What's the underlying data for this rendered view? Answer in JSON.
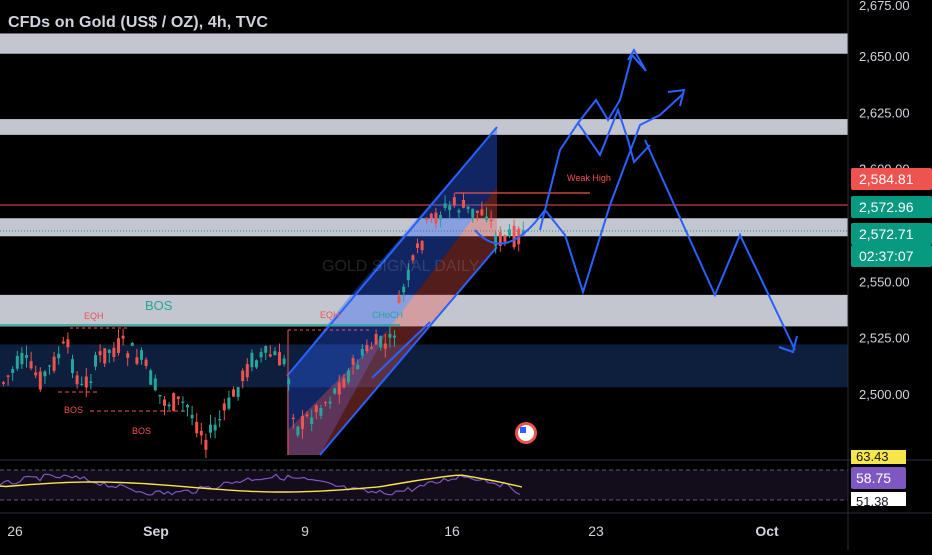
{
  "chart_title": "CFDs on Gold (US$ / OZ), 4h, TVC",
  "watermark": "GOLD SIGNAL DAILY",
  "colors": {
    "bg": "#000000",
    "up": "#26a69a",
    "down": "#ef5350",
    "zone": "#cdd1d9",
    "blue": "#2962ff",
    "text": "#d1d4dc",
    "rsi": "#7e57c2",
    "ma": "#f7e64a"
  },
  "chart_data": {
    "type": "candlestick",
    "title": "CFDs on Gold (US$ / OZ), 4h, TVC",
    "ylim": [
      2480,
      2675
    ],
    "y_ticks": [
      {
        "value": 2675,
        "label": "2,675.00"
      },
      {
        "value": 2650,
        "label": "2,650.00"
      },
      {
        "value": 2625,
        "label": "2,625.00"
      },
      {
        "value": 2600,
        "label": "2,600.00"
      },
      {
        "value": 2550,
        "label": "2,550.00"
      },
      {
        "value": 2525,
        "label": "2,525.00"
      },
      {
        "value": 2500,
        "label": "2,500.00"
      }
    ],
    "x_ticks": [
      "26",
      "Sep",
      "9",
      "16",
      "23",
      "Oct"
    ],
    "price_labels": [
      {
        "value": 2584.81,
        "label": "2,584.81",
        "color": "#ef5350"
      },
      {
        "value": 2572.96,
        "label": "2,572.96",
        "color": "#089981"
      },
      {
        "value": 2572.71,
        "label": "2,572.71",
        "color": "#089981"
      },
      {
        "value": 2566.5,
        "label": "02:37:07",
        "color": "#089981"
      }
    ],
    "zones": [
      {
        "from": 2651,
        "to": 2660
      },
      {
        "from": 2615,
        "to": 2622
      },
      {
        "from": 2570,
        "to": 2578
      },
      {
        "from": 2530,
        "to": 2544
      }
    ],
    "demand_zone": {
      "from": 2503,
      "to": 2522
    },
    "annotations": [
      "BOS",
      "EQH",
      "BOS",
      "BOS",
      "EQH",
      "CHoCH",
      "Weak High"
    ],
    "rsi": {
      "upper": "63.43",
      "value": "58.75",
      "lower": "51.38"
    }
  }
}
